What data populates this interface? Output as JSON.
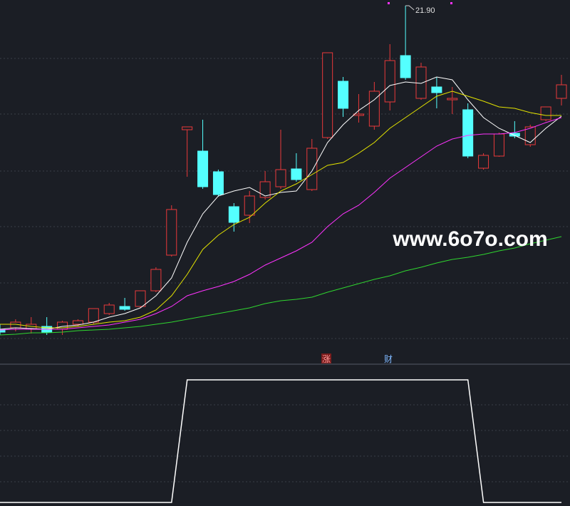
{
  "chart_data": [
    {
      "type": "candlestick",
      "categories": [
        null,
        null,
        null,
        null,
        null,
        null,
        null,
        null,
        null,
        null,
        null,
        null,
        null,
        null,
        null,
        null,
        null,
        null,
        null,
        null,
        null,
        null,
        null,
        null,
        null,
        null,
        null,
        null,
        null,
        null,
        null,
        null,
        null,
        null,
        null,
        null,
        null
      ],
      "open": [
        12.82,
        12.86,
        12.82,
        12.9,
        12.82,
        12.96,
        13.02,
        13.26,
        13.46,
        13.46,
        13.9,
        14.9,
        18.42,
        17.82,
        17.24,
        16.26,
        16.02,
        16.52,
        16.82,
        17.32,
        16.74,
        18.2,
        19.78,
        18.82,
        18.52,
        19.2,
        20.5,
        19.3,
        19.62,
        19.26,
        18.98,
        17.34,
        17.68,
        18.32,
        18.0,
        18.7,
        19.3
      ],
      "high": [
        12.96,
        13.1,
        13.16,
        13.16,
        13.06,
        13.1,
        13.4,
        13.56,
        13.7,
        13.9,
        14.56,
        16.3,
        18.5,
        18.7,
        17.3,
        16.36,
        16.7,
        17.26,
        18.42,
        17.76,
        18.16,
        20.58,
        19.9,
        19.42,
        19.76,
        20.82,
        21.9,
        20.3,
        19.9,
        19.62,
        19.16,
        17.76,
        18.34,
        18.66,
        18.56,
        19.06,
        19.96
      ],
      "low": [
        12.66,
        12.76,
        12.7,
        12.66,
        12.66,
        12.9,
        12.96,
        13.22,
        13.34,
        13.42,
        13.86,
        14.86,
        17.1,
        16.76,
        16.54,
        15.56,
        15.8,
        16.46,
        16.76,
        16.96,
        16.7,
        18.16,
        18.78,
        18.62,
        18.42,
        18.96,
        19.82,
        19.26,
        19.02,
        18.86,
        17.62,
        17.3,
        17.66,
        18.18,
        17.94,
        18.66,
        19.1
      ],
      "close": [
        12.74,
        13.02,
        12.96,
        12.74,
        13.02,
        13.06,
        13.4,
        13.5,
        13.38,
        13.9,
        14.5,
        16.18,
        18.5,
        16.82,
        16.6,
        15.82,
        16.56,
        16.96,
        17.3,
        17.02,
        17.9,
        20.58,
        19.02,
        18.86,
        19.5,
        20.36,
        19.88,
        20.18,
        19.46,
        19.3,
        17.68,
        17.7,
        18.3,
        18.24,
        18.5,
        19.06,
        19.68
      ],
      "up_color": "#e8393a",
      "down_color": "#54ffff",
      "series": [
        {
          "color": "#ffffff",
          "values": [
            12.82,
            12.86,
            12.84,
            12.82,
            12.9,
            12.94,
            13.02,
            13.16,
            13.26,
            13.42,
            13.76,
            14.26,
            15.26,
            16.06,
            16.56,
            16.7,
            16.8,
            16.56,
            16.66,
            16.7,
            17.26,
            18.06,
            18.56,
            18.96,
            19.26,
            19.66,
            19.76,
            19.72,
            19.9,
            19.82,
            19.26,
            18.76,
            18.46,
            18.26,
            18.06,
            18.46,
            18.8
          ]
        },
        {
          "color": "#e3e300",
          "values": [
            12.96,
            12.96,
            12.9,
            12.86,
            12.86,
            12.9,
            12.96,
            13.02,
            13.06,
            13.16,
            13.36,
            13.76,
            14.36,
            15.06,
            15.46,
            15.76,
            15.96,
            16.36,
            16.7,
            16.9,
            17.16,
            17.42,
            17.5,
            17.76,
            18.06,
            18.46,
            18.76,
            19.06,
            19.36,
            19.5,
            19.36,
            19.22,
            19.06,
            19.02,
            18.9,
            18.82,
            18.82
          ]
        },
        {
          "color": "#ff33ff",
          "values": [
            12.8,
            12.82,
            12.82,
            12.82,
            12.82,
            12.86,
            12.9,
            12.94,
            13.02,
            13.1,
            13.26,
            13.46,
            13.76,
            13.9,
            14.02,
            14.16,
            14.36,
            14.62,
            14.82,
            15.02,
            15.26,
            15.7,
            16.06,
            16.3,
            16.66,
            17.06,
            17.36,
            17.66,
            17.96,
            18.16,
            18.26,
            18.3,
            18.3,
            18.34,
            18.46,
            18.62,
            18.76
          ]
        },
        {
          "color": "#2fd62f",
          "values": [
            12.66,
            12.68,
            12.72,
            12.72,
            12.74,
            12.78,
            12.8,
            12.82,
            12.86,
            12.9,
            12.96,
            13.02,
            13.1,
            13.18,
            13.26,
            13.34,
            13.42,
            13.54,
            13.62,
            13.66,
            13.72,
            13.86,
            13.98,
            14.1,
            14.22,
            14.32,
            14.46,
            14.56,
            14.68,
            14.78,
            14.84,
            14.92,
            15.02,
            15.1,
            15.22,
            15.32,
            15.42
          ]
        }
      ],
      "ylim": [
        11.96,
        22.06
      ],
      "high_label": "21.90",
      "markers": [
        "涨",
        "财"
      ],
      "watermark": "www.6o7o.com"
    },
    {
      "type": "line",
      "color": "#ffffff",
      "values": [
        0,
        0,
        0,
        0,
        0,
        0,
        0,
        0,
        0,
        0,
        0,
        0,
        1,
        1,
        1,
        1,
        1,
        1,
        1,
        1,
        1,
        1,
        1,
        1,
        1,
        1,
        1,
        1,
        1,
        1,
        1,
        0,
        0,
        0,
        0,
        0,
        0
      ],
      "ylim": [
        0,
        1
      ]
    }
  ]
}
